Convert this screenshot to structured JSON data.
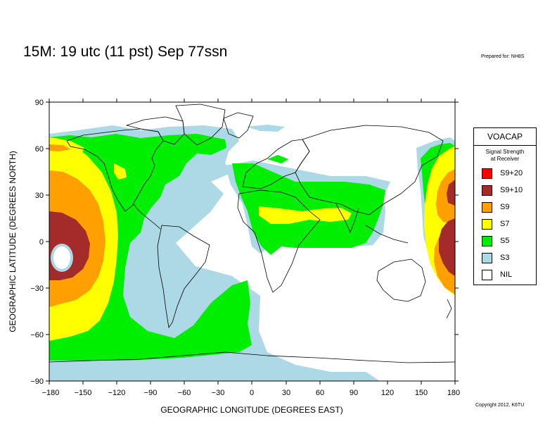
{
  "header": {
    "title": "15M:  19 utc (11 pst) Sep 77ssn",
    "prepared": "Prepared for: NH8S",
    "copyright": "Copyright 2012, K6TU"
  },
  "axes": {
    "xlabel": "GEOGRAPHIC LONGITUDE (DEGREES EAST)",
    "ylabel": "GEOGRAPHIC LATITUDE (DEGREES NORTH)",
    "xticks": [
      "−180",
      "−150",
      "−120",
      "−90",
      "−60",
      "−30",
      "0",
      "30",
      "60",
      "90",
      "120",
      "150",
      "180"
    ],
    "yticks": [
      "90",
      "60",
      "30",
      "0",
      "−30",
      "−60",
      "−90"
    ],
    "xlim": [
      -180,
      180
    ],
    "ylim": [
      -90,
      90
    ]
  },
  "legend": {
    "title": "VOACAP",
    "subtitle_line1": "Signal Strength",
    "subtitle_line2": "at Receiver",
    "items": [
      {
        "label": "S9+20",
        "color": "#ff0000"
      },
      {
        "label": "S9+10",
        "color": "#a52a2a"
      },
      {
        "label": "S9",
        "color": "#ff9f00"
      },
      {
        "label": "S7",
        "color": "#ffff00"
      },
      {
        "label": "S5",
        "color": "#00ee00"
      },
      {
        "label": "S3",
        "color": "#add8e6"
      },
      {
        "label": "NIL",
        "color": "#ffffff"
      }
    ]
  },
  "colors": {
    "s9_10": "#a52a2a",
    "s9": "#ff9f00",
    "s7": "#ffff00",
    "s5": "#00ee00",
    "s3": "#add8e6",
    "coast": "#000000"
  }
}
